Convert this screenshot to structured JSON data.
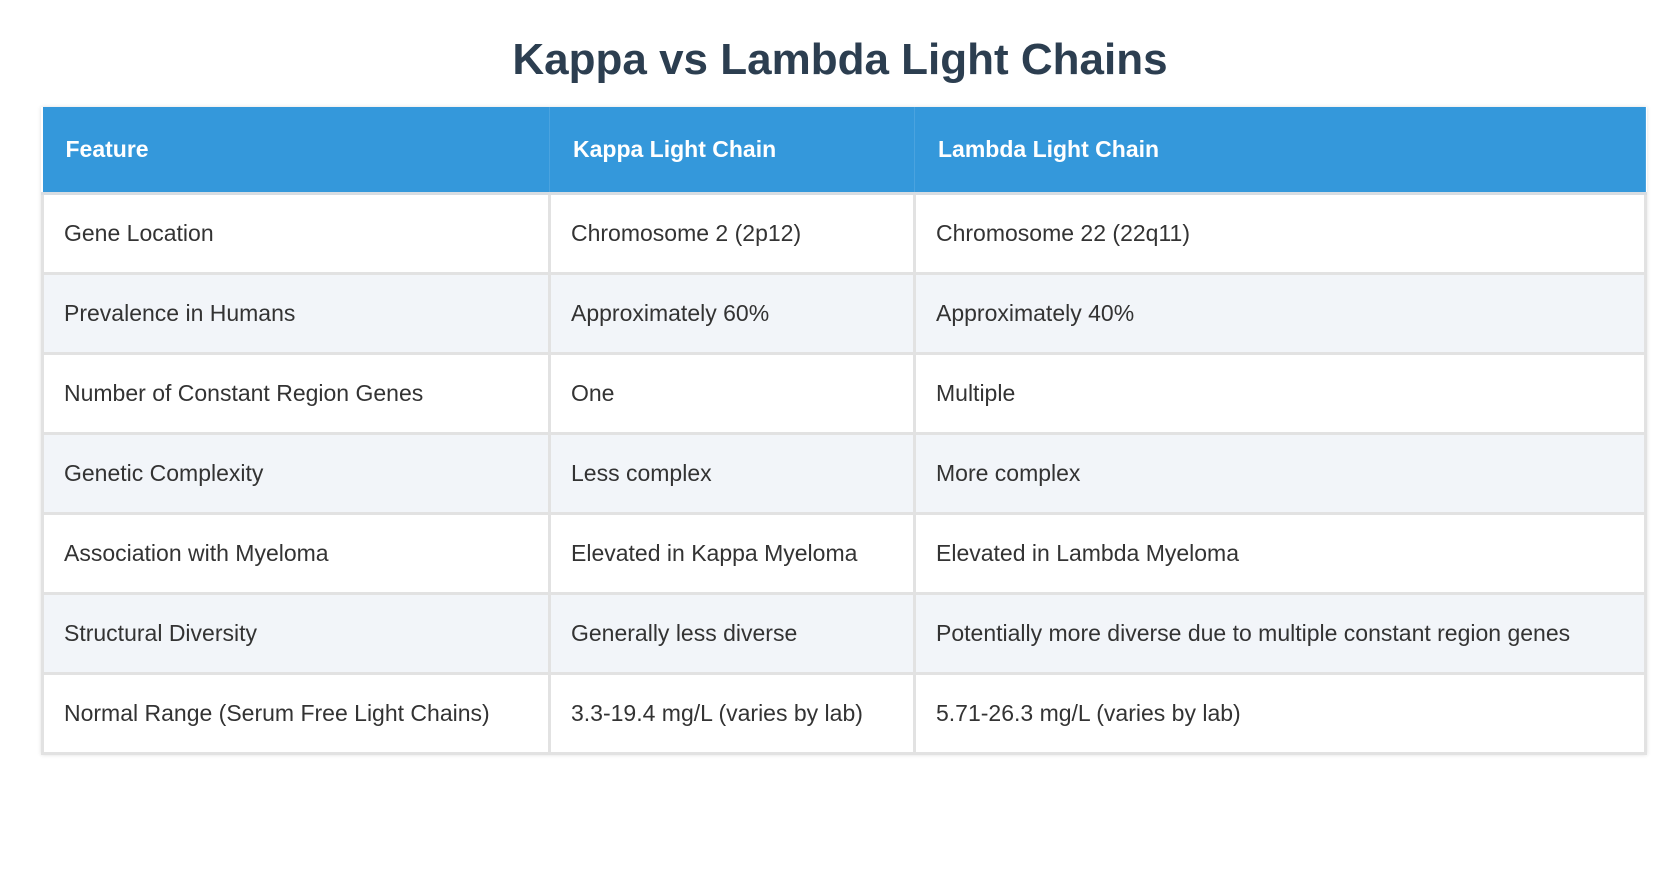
{
  "title": "Kappa vs Lambda Light Chains",
  "colors": {
    "header_bg": "#3498db",
    "title": "#2c3e50",
    "alt_row": "#f2f5f9"
  },
  "table": {
    "headers": [
      "Feature",
      "Kappa Light Chain",
      "Lambda Light Chain"
    ],
    "rows": [
      [
        "Gene Location",
        "Chromosome 2 (2p12)",
        "Chromosome 22 (22q11)"
      ],
      [
        "Prevalence in Humans",
        "Approximately 60%",
        "Approximately 40%"
      ],
      [
        "Number of Constant Region Genes",
        "One",
        "Multiple"
      ],
      [
        "Genetic Complexity",
        "Less complex",
        "More complex"
      ],
      [
        "Association with Myeloma",
        "Elevated in Kappa Myeloma",
        "Elevated in Lambda Myeloma"
      ],
      [
        "Structural Diversity",
        "Generally less diverse",
        "Potentially more diverse due to multiple constant region genes"
      ],
      [
        "Normal Range (Serum Free Light Chains)",
        "3.3-19.4 mg/L (varies by lab)",
        "5.71-26.3 mg/L (varies by lab)"
      ]
    ]
  }
}
